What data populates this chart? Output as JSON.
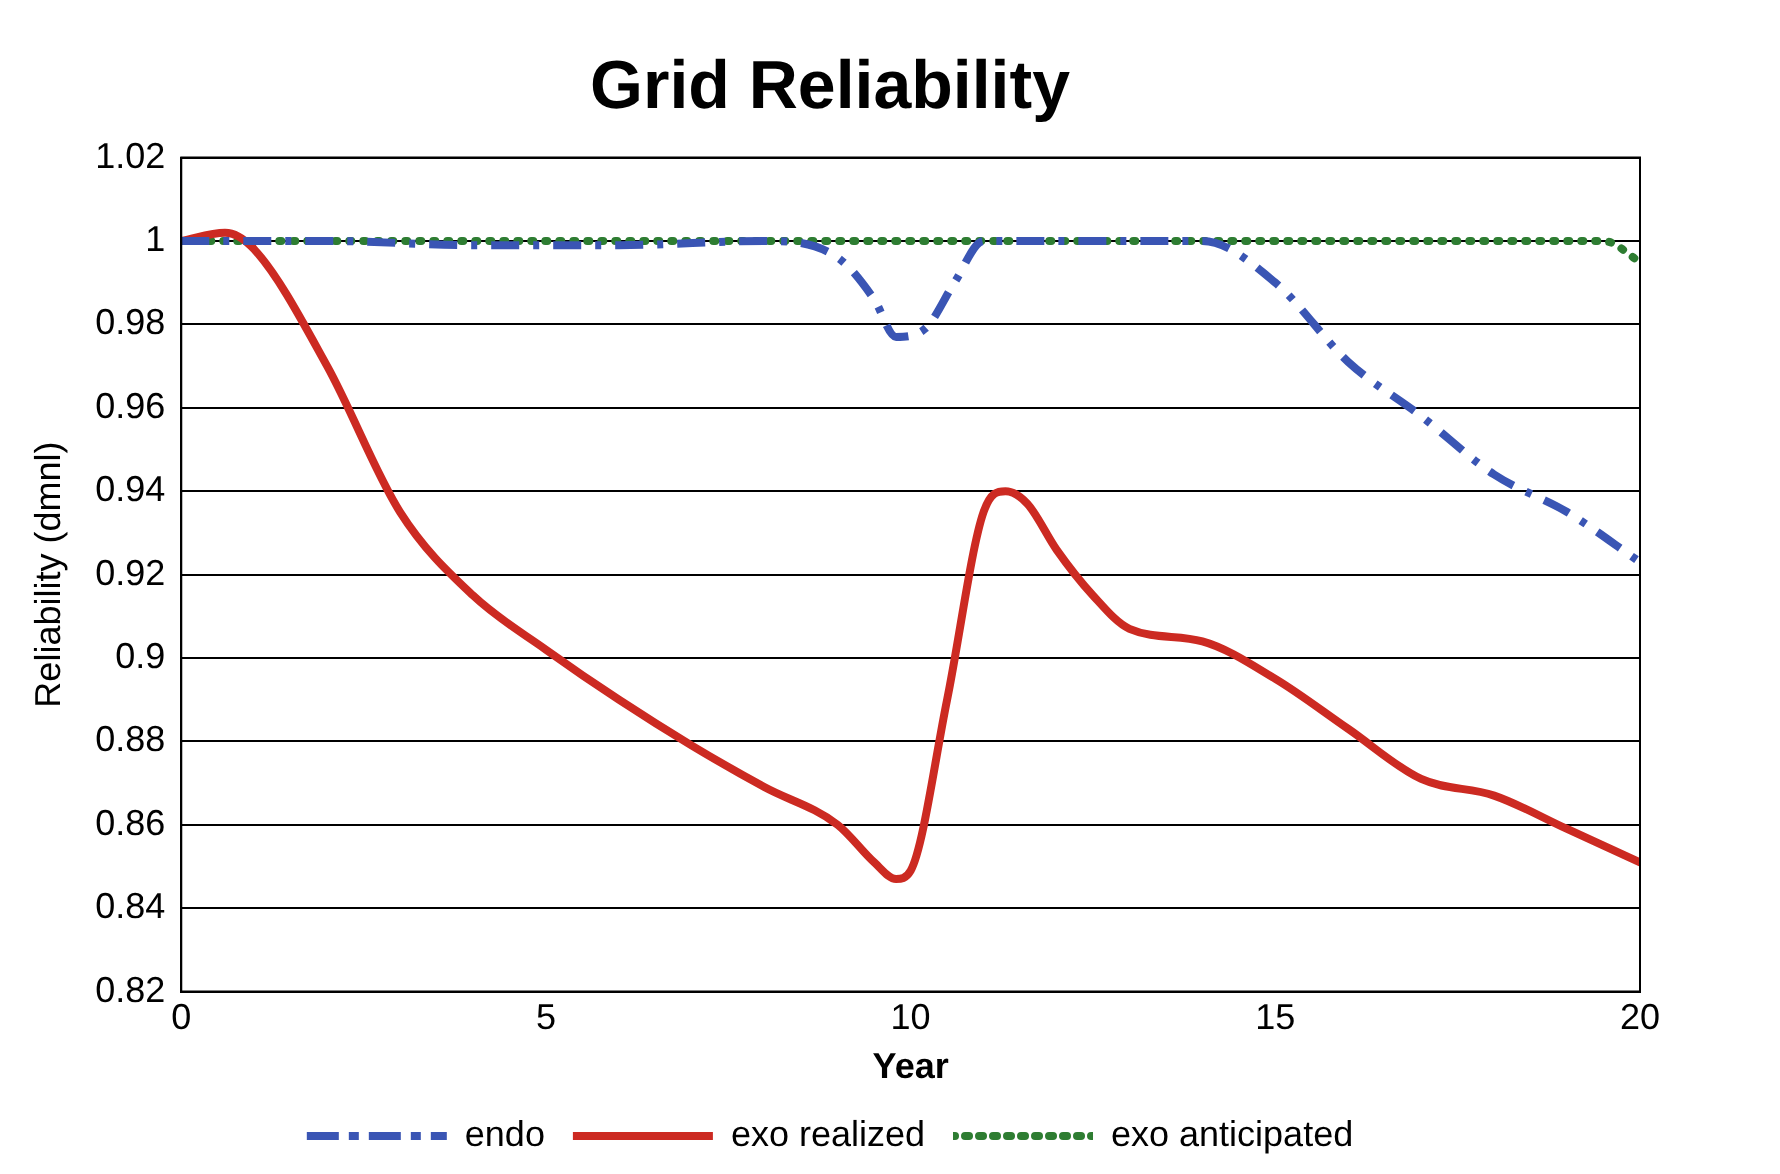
{
  "chart_data": {
    "type": "line",
    "title": "Grid Reliability",
    "xlabel": "Year",
    "ylabel": "Reliability (dmnl)",
    "xlim": [
      0,
      20
    ],
    "xticks": [
      0,
      5,
      10,
      15,
      20
    ],
    "ylim": [
      0.82,
      1.02
    ],
    "yticks": [
      0.82,
      0.84,
      0.86,
      0.88,
      0.9,
      0.92,
      0.94,
      0.96,
      0.98,
      1,
      1.02
    ],
    "grid": "y",
    "legend": "bottom",
    "marker": "none",
    "series": [
      {
        "name": "endo",
        "color": "#3a55b4",
        "line_style": "dashed",
        "x": [
          0,
          2,
          4,
          6,
          8,
          9,
          9.5,
          9.8,
          10.2,
          10.6,
          11,
          12,
          13,
          14,
          15,
          16,
          17,
          18,
          19,
          20
        ],
        "values": [
          1,
          1,
          0.999,
          0.999,
          1,
          0.996,
          0.986,
          0.977,
          0.979,
          0.99,
          1,
          1,
          1,
          1,
          0.99,
          0.971,
          0.958,
          0.944,
          0.935,
          0.923
        ]
      },
      {
        "name": "exo realized",
        "color": "#cc2a22",
        "line_style": "solid",
        "x": [
          0,
          0.6,
          1,
          2,
          3,
          4,
          5,
          6,
          7,
          8,
          9,
          9.5,
          9.8,
          10,
          10.5,
          11,
          11.3,
          11.6,
          12,
          12.5,
          13,
          14,
          15,
          16,
          17,
          18,
          19,
          20
        ],
        "values": [
          1,
          1.002,
          0.998,
          0.97,
          0.935,
          0.915,
          0.902,
          0.89,
          0.879,
          0.869,
          0.86,
          0.851,
          0.847,
          0.849,
          0.89,
          0.935,
          0.94,
          0.937,
          0.926,
          0.915,
          0.907,
          0.904,
          0.895,
          0.883,
          0.871,
          0.867,
          0.859,
          0.851
        ]
      },
      {
        "name": "exo anticipated",
        "color": "#2e7d32",
        "line_style": "dotted",
        "x": [
          0,
          5,
          10,
          15,
          19,
          19.5,
          20
        ],
        "values": [
          1,
          1,
          1,
          1,
          1,
          1,
          0.995
        ]
      }
    ]
  }
}
